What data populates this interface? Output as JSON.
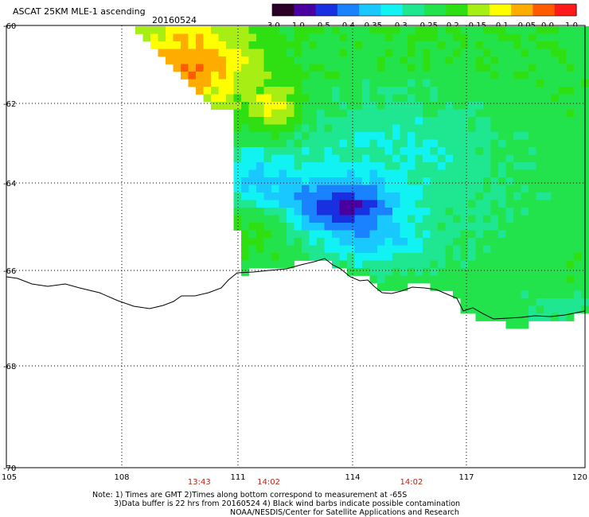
{
  "header": {
    "product": "ASCAT 25KM MLE-1 ascending",
    "date": "20160524"
  },
  "colorbar": {
    "labels": [
      "-3.0",
      "-1.0",
      "-0.5",
      "-0.4",
      "-0.35",
      "-0.3",
      "-0.25",
      "-0.2",
      "-0.15",
      "-0.1",
      "-0.05",
      "0.0",
      "1.0"
    ],
    "colors": [
      "#2b0028",
      "#4a00a0",
      "#1830e0",
      "#1a82ff",
      "#19c8ff",
      "#11f2f2",
      "#1fe690",
      "#22e34c",
      "#2ee012",
      "#a6ee14",
      "#ffff00",
      "#ffac00",
      "#ff5a00",
      "#ff1a1a"
    ]
  },
  "map": {
    "lon_labels": [
      "105",
      "108",
      "111",
      "114",
      "117",
      "120"
    ],
    "lat_labels": [
      "-60",
      "-62",
      "-64",
      "-66",
      "-68",
      "-70"
    ],
    "lon_range": [
      105,
      120
    ],
    "lat_range": [
      -60,
      -70
    ],
    "times": [
      {
        "label": "13:43",
        "lon": 110.0
      },
      {
        "label": "14:02",
        "lon": 111.8
      },
      {
        "label": "14:02",
        "lon": 115.5
      }
    ]
  },
  "footer": {
    "line1": "Note: 1) Times are GMT 2)Times along bottom correspond to measurement at -65S",
    "line2": "3)Data buffer is 22 hrs from 20160524 4) Black wind barbs indicate possible contamination",
    "line3": "NOAA/NESDIS/Center for Satellite Applications and Research"
  }
}
